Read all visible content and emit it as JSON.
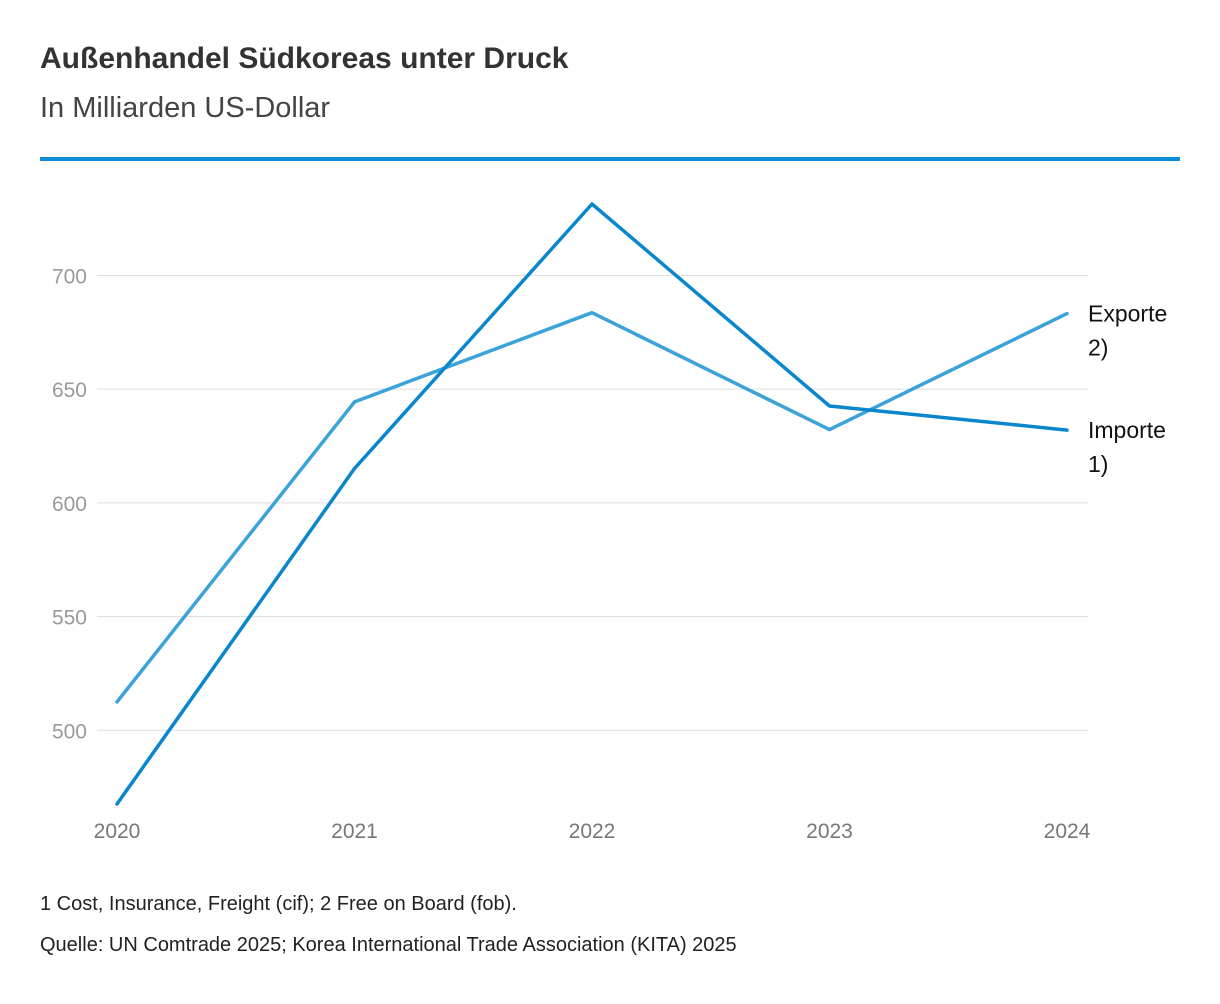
{
  "header": {
    "title": "Außenhandel Südkoreas unter Druck",
    "subtitle": "In Milliarden US-Dollar"
  },
  "chart_data": {
    "type": "line",
    "x": [
      "2020",
      "2021",
      "2022",
      "2023",
      "2024"
    ],
    "series": [
      {
        "name": "Exporte 2)",
        "label_lines": [
          "Exporte",
          "2)"
        ],
        "color": "#3ca3da",
        "values": [
          512.5,
          644.4,
          683.6,
          632.2,
          683.2
        ]
      },
      {
        "name": "Importe 1)",
        "label_lines": [
          "Importe",
          "1)"
        ],
        "color": "#0a87cc",
        "values": [
          467.6,
          615.1,
          731.4,
          642.6,
          632.0
        ]
      }
    ],
    "yticks": [
      500,
      550,
      600,
      650,
      700
    ],
    "ylim": [
      467.6,
      731.4
    ],
    "grid": true,
    "legend": "direct labels at line ends, right"
  },
  "footer": {
    "footnote": "1 Cost, Insurance, Freight (cif); 2 Free on Board (fob).",
    "source": "Quelle: UN Comtrade 2025; Korea International Trade Association (KITA) 2025"
  }
}
